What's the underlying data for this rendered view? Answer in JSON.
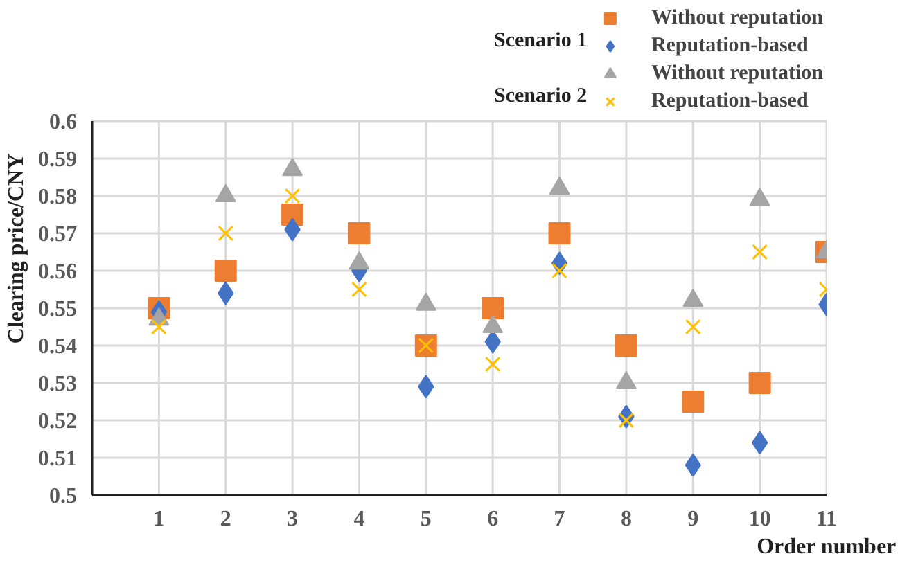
{
  "chart_data": {
    "type": "scatter",
    "xlabel": "Order number",
    "ylabel": "Clearing price/CNY",
    "x": [
      1,
      2,
      3,
      4,
      5,
      6,
      7,
      8,
      9,
      10,
      11
    ],
    "series": [
      {
        "name": "Without reputation",
        "color": "#ed7d31",
        "marker": "square",
        "values": [
          0.55,
          0.56,
          0.575,
          0.57,
          0.54,
          0.55,
          0.57,
          0.54,
          0.525,
          0.53,
          0.565
        ]
      },
      {
        "name": "Reputation-based",
        "color": "#4472c4",
        "marker": "diamond",
        "values": [
          0.549,
          0.554,
          0.571,
          0.56,
          0.529,
          0.541,
          0.562,
          0.521,
          0.508,
          0.514,
          0.551
        ]
      },
      {
        "name": "Without reputation",
        "color": "#a5a5a5",
        "marker": "triangle",
        "values": [
          0.547,
          0.58,
          0.587,
          0.562,
          0.551,
          0.545,
          0.582,
          0.53,
          0.552,
          0.579,
          0.565
        ]
      },
      {
        "name": "Reputation-based",
        "color": "#ffc000",
        "marker": "cross",
        "values": [
          0.545,
          0.57,
          0.58,
          0.555,
          0.54,
          0.535,
          0.56,
          0.52,
          0.545,
          0.565,
          0.555
        ]
      }
    ],
    "annotations": [
      "Scenario 1",
      "Scenario 2"
    ],
    "xlim": [
      0,
      11
    ],
    "xticks": [
      {
        "value": 0,
        "label": null
      },
      1,
      2,
      3,
      4,
      5,
      6,
      7,
      8,
      9,
      10,
      11
    ],
    "ylim": [
      0.5,
      0.6
    ],
    "yticks": [
      0.5,
      0.51,
      0.52,
      0.53,
      0.54,
      0.55,
      0.56,
      0.57,
      0.58,
      0.59,
      0.6
    ],
    "grid": true,
    "legend": "top right"
  }
}
